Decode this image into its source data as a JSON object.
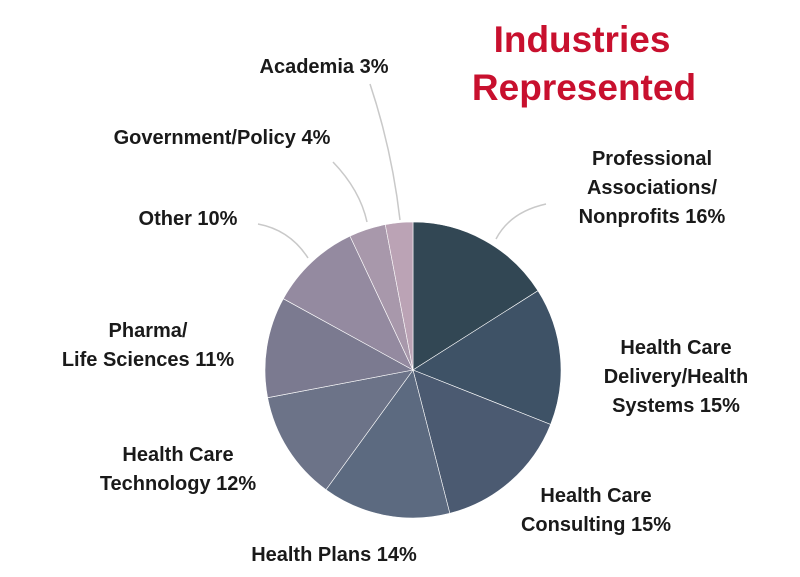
{
  "chart_data": {
    "type": "pie",
    "title": [
      "Industries",
      "Represented"
    ],
    "title_color": "#c8102e",
    "slices": [
      {
        "label": [
          "Professional",
          "Associations/",
          "Nonprofits 16%"
        ],
        "value": 16,
        "color": "#324754"
      },
      {
        "label": [
          "Health Care",
          "Delivery/Health",
          "Systems 15%"
        ],
        "value": 15,
        "color": "#3e5266"
      },
      {
        "label": [
          "Health Care",
          "Consulting 15%"
        ],
        "value": 15,
        "color": "#4b5a71"
      },
      {
        "label": [
          "Health Plans 14%"
        ],
        "value": 14,
        "color": "#5c6a80"
      },
      {
        "label": [
          "Health Care",
          "Technology 12%"
        ],
        "value": 12,
        "color": "#6c7388"
      },
      {
        "label": [
          "Pharma/",
          "Life Sciences 11%"
        ],
        "value": 11,
        "color": "#7b7a90"
      },
      {
        "label": [
          "Other 10%"
        ],
        "value": 10,
        "color": "#948aa0"
      },
      {
        "label": [
          "Government/Policy 4%"
        ],
        "value": 4,
        "color": "#a898ab"
      },
      {
        "label": [
          "Academia 3%"
        ],
        "value": 3,
        "color": "#bba3b5"
      }
    ]
  }
}
